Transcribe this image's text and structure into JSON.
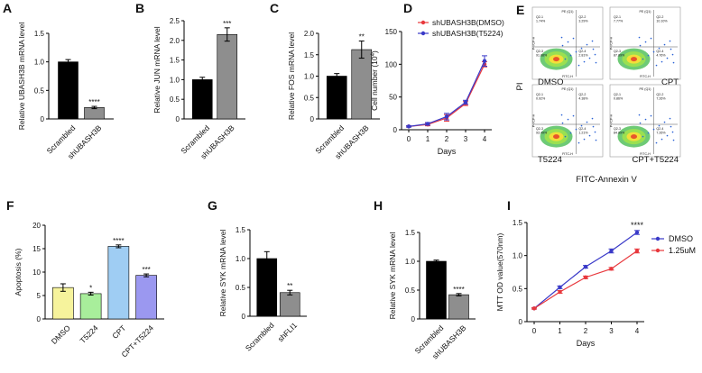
{
  "chart_data": [
    {
      "id": "A",
      "type": "bar",
      "panel_label": "A",
      "ylabel": "Relative UBASH3B mRNA level",
      "xlabel": "",
      "ylim": [
        0,
        1.5
      ],
      "yticks": [
        0,
        0.5,
        1.0,
        1.5
      ],
      "ytick_labels": [
        "0",
        "0.5",
        "1.0",
        "1.5"
      ],
      "categories": [
        "Scrambled",
        "shUBASH3B"
      ],
      "values": [
        1.0,
        0.2
      ],
      "errors": [
        0.04,
        0.02
      ],
      "colors": [
        "#000000",
        "#8e8e8e"
      ],
      "significance": [
        "",
        "****"
      ]
    },
    {
      "id": "B",
      "type": "bar",
      "panel_label": "B",
      "ylabel": "Relative JUN mRNA level",
      "xlabel": "",
      "ylim": [
        0,
        2.5
      ],
      "yticks": [
        0,
        0.5,
        1.0,
        1.5,
        2.0,
        2.5
      ],
      "ytick_labels": [
        "0",
        "0.5",
        "1.0",
        "1.5",
        "2.0",
        "2.5"
      ],
      "categories": [
        "Scrambled",
        "shUBASH3B"
      ],
      "values": [
        1.0,
        2.15
      ],
      "errors": [
        0.06,
        0.17
      ],
      "colors": [
        "#000000",
        "#8e8e8e"
      ],
      "significance": [
        "",
        "***"
      ]
    },
    {
      "id": "C",
      "type": "bar",
      "panel_label": "C",
      "ylabel": "Relative FOS mRNA level",
      "xlabel": "",
      "ylim": [
        0,
        2.0
      ],
      "yticks": [
        0,
        0.5,
        1.0,
        1.5,
        2.0
      ],
      "ytick_labels": [
        "0",
        "0.5",
        "1.0",
        "1.5",
        "2.0"
      ],
      "categories": [
        "Scrambled",
        "shUBASH3B"
      ],
      "values": [
        1.0,
        1.62
      ],
      "errors": [
        0.06,
        0.2
      ],
      "colors": [
        "#000000",
        "#8e8e8e"
      ],
      "significance": [
        "",
        "**"
      ]
    },
    {
      "id": "D",
      "type": "line",
      "panel_label": "D",
      "ylabel": "Cell number (10",
      "ylabel_sup": "4",
      "ylabel_end": ")",
      "xlabel": "Days",
      "ylim": [
        0,
        150
      ],
      "yticks": [
        0,
        50,
        100,
        150
      ],
      "ytick_labels": [
        "0",
        "50",
        "100",
        "150"
      ],
      "xlim": [
        0,
        4
      ],
      "x": [
        0,
        1,
        2,
        3,
        4
      ],
      "xtick_labels": [
        "0",
        "1",
        "2",
        "3",
        "4"
      ],
      "legend_position": "top-left",
      "series": [
        {
          "name": "shUBASH3B(DMSO)",
          "color": "#e8383d",
          "values": [
            5,
            8,
            18,
            40,
            100
          ],
          "errors": [
            1,
            2,
            5,
            3,
            4
          ]
        },
        {
          "name": "shUBASH3B(T5224)",
          "color": "#3a3ac8",
          "values": [
            5,
            9,
            20,
            42,
            105
          ],
          "errors": [
            1,
            2,
            5,
            3,
            8
          ]
        }
      ]
    },
    {
      "id": "F",
      "type": "bar",
      "panel_label": "F",
      "ylabel": "Apoptosis (%)",
      "xlabel": "",
      "ylim": [
        0,
        20
      ],
      "yticks": [
        0,
        5,
        10,
        15,
        20
      ],
      "ytick_labels": [
        "0",
        "5",
        "10",
        "15",
        "20"
      ],
      "categories": [
        "DMSO",
        "T5224",
        "CPT",
        "CPT+T5224"
      ],
      "values": [
        6.7,
        5.4,
        15.5,
        9.3
      ],
      "errors": [
        0.8,
        0.3,
        0.3,
        0.3
      ],
      "colors": [
        "#f6f39c",
        "#a8ee9b",
        "#9fcdf3",
        "#9b98f0"
      ],
      "significance": [
        "",
        "*",
        "****",
        "***"
      ]
    },
    {
      "id": "G",
      "type": "bar",
      "panel_label": "G",
      "ylabel": "Relative SYK mRNA level",
      "xlabel": "",
      "ylim": [
        0,
        1.5
      ],
      "yticks": [
        0,
        0.5,
        1.0,
        1.5
      ],
      "ytick_labels": [
        "0",
        "0.5",
        "1.0",
        "1.5"
      ],
      "categories": [
        "Scrambled",
        "shFLI1"
      ],
      "values": [
        1.0,
        0.41
      ],
      "errors": [
        0.12,
        0.04
      ],
      "colors": [
        "#000000",
        "#8e8e8e"
      ],
      "significance": [
        "",
        "**"
      ]
    },
    {
      "id": "H",
      "type": "bar",
      "panel_label": "H",
      "ylabel": "Relative SYK mRNA level",
      "xlabel": "",
      "ylim": [
        0,
        1.5
      ],
      "yticks": [
        0,
        0.5,
        1.0,
        1.5
      ],
      "ytick_labels": [
        "0",
        "0.5",
        "1.0",
        "1.5"
      ],
      "categories": [
        "Scrambled",
        "shUBASH3B"
      ],
      "values": [
        1.0,
        0.42
      ],
      "errors": [
        0.02,
        0.02
      ],
      "colors": [
        "#000000",
        "#8e8e8e"
      ],
      "significance": [
        "",
        "****"
      ]
    },
    {
      "id": "I",
      "type": "line",
      "panel_label": "I",
      "ylabel": "MTT OD value(570nm)",
      "xlabel": "Days",
      "ylim": [
        0,
        1.5
      ],
      "yticks": [
        0,
        0.5,
        1.0,
        1.5
      ],
      "ytick_labels": [
        "0",
        "0.5",
        "1.0",
        "1.5"
      ],
      "xlim": [
        0,
        4
      ],
      "x": [
        0,
        1,
        2,
        3,
        4
      ],
      "xtick_labels": [
        "0",
        "1",
        "2",
        "3",
        "4"
      ],
      "legend_position": "top-right",
      "annotation": "****",
      "series": [
        {
          "name": "DMSO",
          "color": "#3a3ac8",
          "values": [
            0.2,
            0.52,
            0.83,
            1.07,
            1.35
          ],
          "errors": [
            0.01,
            0.02,
            0.02,
            0.03,
            0.03
          ]
        },
        {
          "name": "1.25uM",
          "color": "#e8383d",
          "values": [
            0.2,
            0.45,
            0.67,
            0.8,
            1.07
          ],
          "errors": [
            0.01,
            0.02,
            0.02,
            0.02,
            0.03
          ]
        }
      ]
    }
  ],
  "panel_e": {
    "label": "E",
    "yaxis_label": "PI",
    "xaxis_label": "FITC-Annexin V",
    "plots": [
      {
        "condition": "DMSO",
        "q1": "1.74%",
        "q2": "3.29%",
        "q3": "91.88%",
        "q4": "2.81%"
      },
      {
        "condition": "CPT",
        "q1": "7.77%",
        "q2": "10.10%",
        "q3": "87.89%",
        "q4": "4.76%"
      },
      {
        "condition": "T5224",
        "q1": "0.92%",
        "q2": "4.38%",
        "q3": "93.49%",
        "q4": "1.21%"
      },
      {
        "condition": "CPT+T5224",
        "q1": "0.86%",
        "q2": "7.26%",
        "q3": "84.89%",
        "q4": "7.26%"
      }
    ],
    "quadrant_names": [
      "Q2-1",
      "Q2-2",
      "Q2-3",
      "Q2-4"
    ],
    "plot_title": "PE (Q1)",
    "x_channel": "FITC-H",
    "y_channel": "PerCP-H"
  }
}
